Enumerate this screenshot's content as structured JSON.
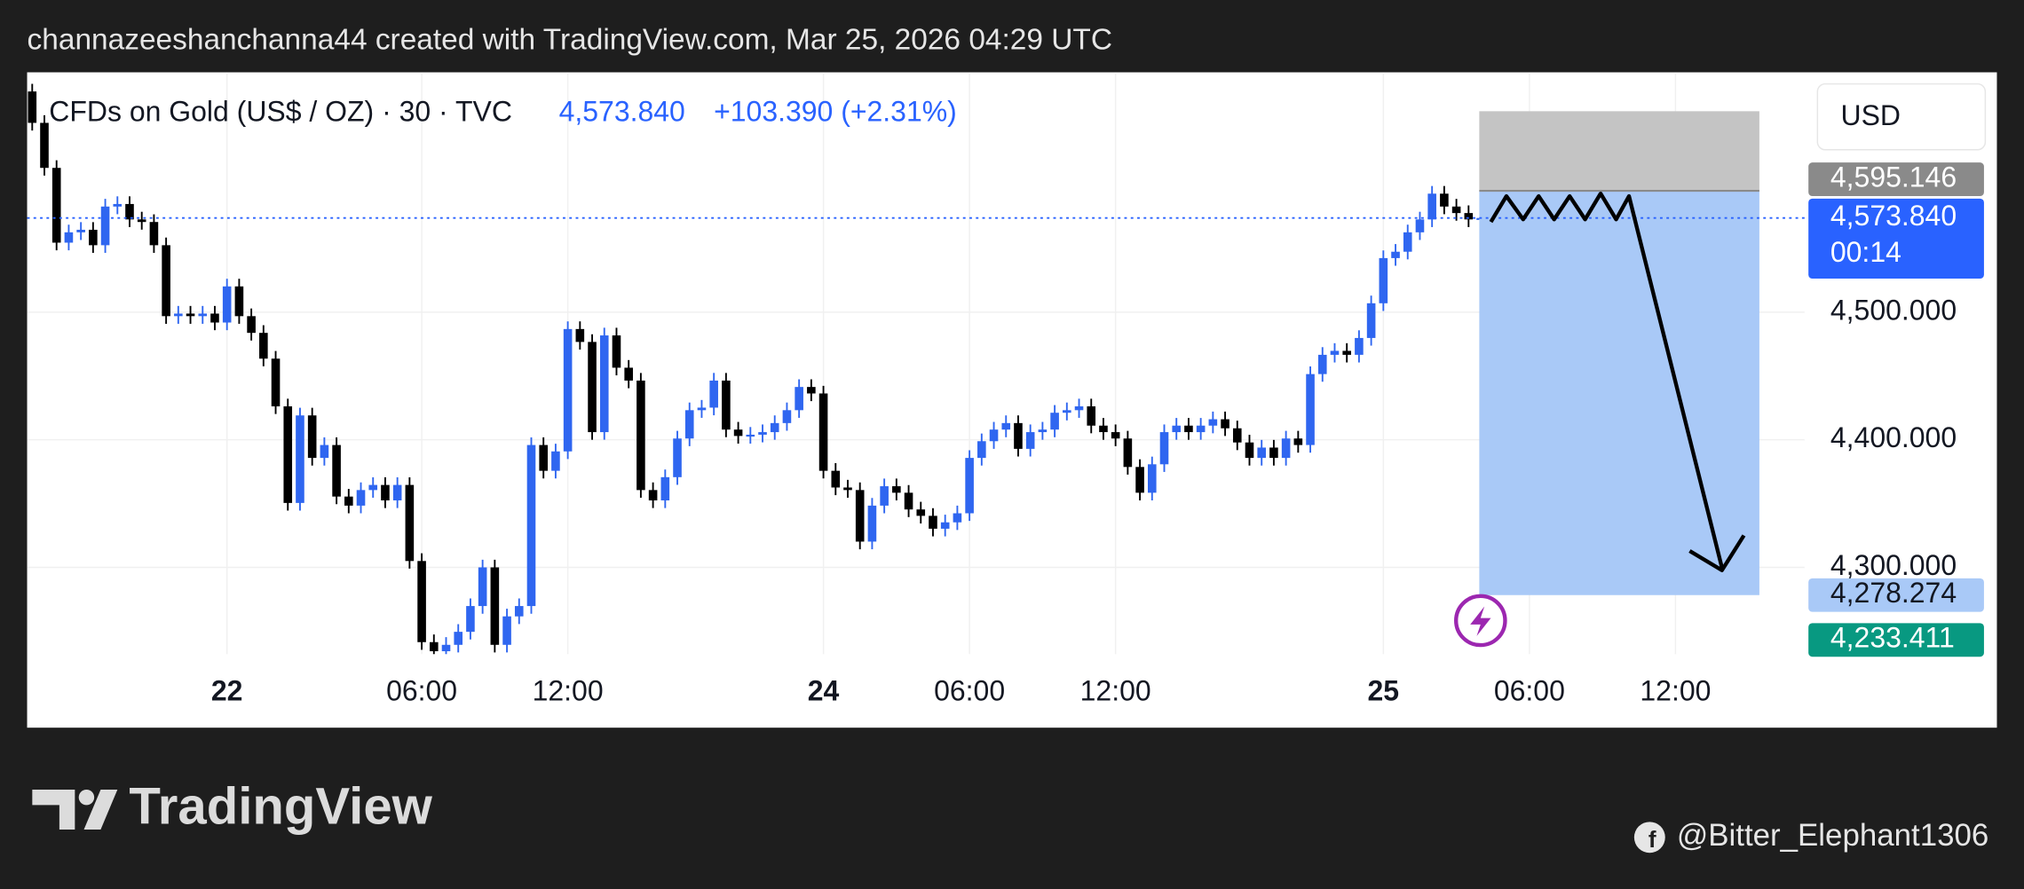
{
  "header": {
    "text": "channazeeshanchanna44 created with TradingView.com, Mar 25, 2026 04:29 UTC"
  },
  "chart_data": {
    "type": "candlestick",
    "title": "CFDs on Gold (US$ / OZ) · 30 · TVC",
    "last_price": {
      "value": 4573.84,
      "label": "4,573.840"
    },
    "change_label": "+103.390 (+2.31%)",
    "currency": "USD",
    "categories": [
      null,
      null,
      null,
      null,
      null,
      null,
      null,
      null,
      null,
      null,
      null,
      null,
      null,
      null,
      null,
      null,
      "22",
      null,
      null,
      null,
      null,
      null,
      null,
      null,
      null,
      null,
      null,
      null,
      null,
      null,
      null,
      null,
      "06:00",
      null,
      null,
      null,
      null,
      null,
      null,
      null,
      null,
      null,
      null,
      null,
      "12:00",
      null,
      null,
      null,
      null,
      null,
      null,
      null,
      null,
      null,
      null,
      null,
      null,
      null,
      null,
      null,
      null,
      null,
      null,
      null,
      null,
      "24",
      null,
      null,
      null,
      null,
      null,
      null,
      null,
      null,
      null,
      null,
      null,
      "06:00",
      null,
      null,
      null,
      null,
      null,
      null,
      null,
      null,
      null,
      null,
      null,
      "12:00",
      null,
      null,
      null,
      null,
      null,
      null,
      null,
      null,
      null,
      null,
      null,
      null,
      null,
      null,
      null,
      null,
      null,
      null,
      null,
      null,
      null,
      "25",
      null,
      null,
      null,
      null,
      null,
      null,
      null,
      null,
      null,
      null,
      null,
      "06:00",
      null,
      null,
      null,
      null,
      null,
      null,
      null,
      null,
      null,
      null,
      null,
      "12:00",
      null,
      null,
      null,
      null,
      null,
      null,
      null,
      null,
      null,
      null
    ],
    "open": [
      4673.0,
      4648.4,
      4613.1,
      4554.5,
      4562.6,
      4564.6,
      4552.5,
      4582.8,
      4584.8,
      4572.7,
      4570.7,
      4552.5,
      4496.9,
      4498.9,
      4496.9,
      4498.9,
      4491.9,
      4520.2,
      4496.9,
      4483.8,
      4463.6,
      4426.2,
      4350.5,
      4419.1,
      4385.8,
      4395.9,
      4355.5,
      4348.4,
      4360.6,
      4364.6,
      4352.5,
      4364.6,
      4305.0,
      4241.4,
      4234.3,
      4239.3,
      4249.5,
      4269.7,
      4300.0,
      4239.3,
      4261.6,
      4269.7,
      4395.9,
      4375.7,
      4390.9,
      4486.8,
      4476.7,
      4406.0,
      4481.8,
      4456.5,
      4446.4,
      4360.6,
      4352.5,
      4370.7,
      4401.0,
      4423.2,
      4425.2,
      4446.4,
      4408.0,
      4403.0,
      4404.0,
      4406.0,
      4413.1,
      4423.2,
      4441.4,
      4436.3,
      4375.7,
      4362.6,
      4360.6,
      4320.2,
      4348.4,
      4363.6,
      4358.5,
      4345.4,
      4340.4,
      4330.3,
      4335.3,
      4342.4,
      4385.8,
      4398.9,
      4408.0,
      4413.1,
      4392.9,
      4406.0,
      4408.0,
      4421.2,
      4423.2,
      4426.2,
      4411.1,
      4406.0,
      4401.0,
      4378.7,
      4358.5,
      4380.8,
      4406.0,
      4411.1,
      4406.0,
      4411.1,
      4416.1,
      4409.0,
      4397.9,
      4385.8,
      4393.9,
      4385.8,
      4401.0,
      4395.9,
      4451.5,
      4466.6,
      4469.7,
      4466.6,
      4479.8,
      4507.0,
      4542.4,
      4547.4,
      4562.6,
      4572.7,
      4592.9,
      4582.8,
      4577.7,
      4572.7,
      null,
      null,
      null,
      null,
      null,
      null,
      null,
      null,
      null,
      null,
      null,
      null,
      null,
      null,
      null,
      null,
      null,
      null,
      null,
      null,
      null,
      null,
      null,
      null,
      null,
      null
    ],
    "high": [
      4679.0,
      4654.4,
      4619.1,
      4568.6,
      4570.6,
      4570.6,
      4588.8,
      4590.8,
      4590.8,
      4578.7,
      4576.7,
      4558.5,
      4504.9,
      4504.9,
      4504.9,
      4504.9,
      4526.2,
      4526.2,
      4502.9,
      4489.8,
      4469.6,
      4432.2,
      4425.1,
      4425.1,
      4401.9,
      4401.9,
      4361.5,
      4366.6,
      4370.6,
      4370.6,
      4370.6,
      4370.6,
      4311.0,
      4247.4,
      4245.3,
      4255.5,
      4275.7,
      4306.0,
      4306.0,
      4267.6,
      4275.7,
      4401.9,
      4401.9,
      4396.9,
      4492.8,
      4492.8,
      4482.7,
      4487.8,
      4487.8,
      4462.5,
      4452.4,
      4366.6,
      4376.7,
      4407.0,
      4429.2,
      4431.2,
      4452.4,
      4452.4,
      4414.0,
      4410.0,
      4412.0,
      4419.1,
      4429.2,
      4447.4,
      4447.4,
      4442.3,
      4381.7,
      4368.6,
      4366.6,
      4354.4,
      4369.6,
      4369.6,
      4364.5,
      4351.4,
      4346.4,
      4341.3,
      4348.4,
      4391.8,
      4404.9,
      4414.0,
      4419.1,
      4419.1,
      4412.0,
      4414.0,
      4427.2,
      4429.2,
      4432.2,
      4432.2,
      4417.1,
      4412.0,
      4407.0,
      4384.7,
      4386.8,
      4412.0,
      4417.1,
      4417.1,
      4417.1,
      4422.1,
      4422.1,
      4415.0,
      4403.9,
      4399.9,
      4399.9,
      4407.0,
      4407.0,
      4457.5,
      4472.6,
      4475.7,
      4475.7,
      4485.8,
      4513.0,
      4548.4,
      4553.4,
      4568.6,
      4578.7,
      4598.9,
      4598.9,
      4588.8,
      4583.7,
      4579.84,
      null,
      null,
      null,
      null,
      null,
      null,
      null,
      null,
      null,
      null,
      null,
      null,
      null,
      null,
      null,
      null,
      null,
      null,
      null,
      null,
      null,
      null,
      null,
      null,
      null,
      null
    ],
    "low": [
      4642.4,
      4607.1,
      4548.5,
      4548.5,
      4556.6,
      4546.5,
      4546.5,
      4576.8,
      4566.7,
      4564.7,
      4546.5,
      4490.9,
      4490.9,
      4490.9,
      4490.9,
      4485.9,
      4485.9,
      4490.9,
      4477.8,
      4457.6,
      4420.2,
      4344.5,
      4344.5,
      4379.8,
      4379.8,
      4349.5,
      4342.4,
      4342.4,
      4354.6,
      4346.5,
      4346.5,
      4299.0,
      4235.4,
      4228.3,
      4228.3,
      4233.3,
      4243.5,
      4263.7,
      4233.3,
      4233.3,
      4255.6,
      4263.7,
      4369.7,
      4369.7,
      4384.9,
      4470.7,
      4400.0,
      4400.0,
      4450.5,
      4440.4,
      4354.6,
      4346.5,
      4346.5,
      4364.7,
      4395.0,
      4417.2,
      4419.2,
      4402.0,
      4397.0,
      4397.0,
      4398.0,
      4400.0,
      4407.1,
      4417.2,
      4430.3,
      4369.7,
      4356.6,
      4354.6,
      4314.2,
      4314.2,
      4342.4,
      4352.5,
      4339.4,
      4334.4,
      4324.3,
      4324.3,
      4329.3,
      4336.4,
      4379.8,
      4392.9,
      4402.0,
      4386.9,
      4386.9,
      4400.0,
      4402.0,
      4415.2,
      4417.2,
      4405.1,
      4400.0,
      4395.0,
      4372.7,
      4352.5,
      4352.5,
      4374.8,
      4400.0,
      4400.0,
      4400.0,
      4405.1,
      4403.0,
      4391.9,
      4379.8,
      4379.8,
      4379.8,
      4379.8,
      4389.9,
      4389.9,
      4445.5,
      4460.6,
      4460.6,
      4460.6,
      4473.8,
      4501.0,
      4536.4,
      4541.4,
      4556.6,
      4566.7,
      4576.8,
      4571.7,
      4566.7,
      4566.7,
      null,
      null,
      null,
      null,
      null,
      null,
      null,
      null,
      null,
      null,
      null,
      null,
      null,
      null,
      null,
      null,
      null,
      null,
      null,
      null,
      null,
      null,
      null,
      null,
      null,
      null
    ],
    "close": [
      4648.4,
      4613.1,
      4554.5,
      4562.6,
      4564.6,
      4552.5,
      4582.8,
      4584.8,
      4572.7,
      4570.7,
      4552.5,
      4496.9,
      4498.9,
      4496.9,
      4498.9,
      4491.9,
      4520.2,
      4496.9,
      4483.8,
      4463.6,
      4426.2,
      4350.5,
      4419.1,
      4385.8,
      4395.9,
      4355.5,
      4348.4,
      4360.6,
      4364.6,
      4352.5,
      4364.6,
      4305.0,
      4241.4,
      4234.3,
      4239.3,
      4249.5,
      4269.7,
      4300.0,
      4239.3,
      4261.6,
      4269.7,
      4395.9,
      4375.7,
      4390.9,
      4486.8,
      4476.7,
      4406.0,
      4481.8,
      4456.5,
      4446.4,
      4360.6,
      4352.5,
      4370.7,
      4401.0,
      4423.2,
      4425.2,
      4446.4,
      4408.0,
      4403.0,
      4404.0,
      4406.0,
      4413.1,
      4423.2,
      4441.4,
      4436.3,
      4375.7,
      4362.6,
      4360.6,
      4320.2,
      4348.4,
      4363.6,
      4358.5,
      4345.4,
      4340.4,
      4330.3,
      4335.3,
      4342.4,
      4385.8,
      4398.9,
      4408.0,
      4413.1,
      4392.9,
      4406.0,
      4408.0,
      4421.2,
      4423.2,
      4426.2,
      4411.1,
      4406.0,
      4401.0,
      4378.7,
      4358.5,
      4380.8,
      4406.0,
      4411.1,
      4406.0,
      4411.1,
      4416.1,
      4409.0,
      4397.9,
      4385.8,
      4393.9,
      4385.8,
      4401.0,
      4395.9,
      4451.5,
      4466.6,
      4469.7,
      4466.6,
      4479.8,
      4507.0,
      4542.4,
      4547.4,
      4562.6,
      4572.7,
      4592.9,
      4582.8,
      4577.7,
      4572.7,
      4573.84,
      null,
      null,
      null,
      null,
      null,
      null,
      null,
      null,
      null,
      null,
      null,
      null,
      null,
      null,
      null,
      null,
      null,
      null,
      null,
      null,
      null,
      null,
      null,
      null,
      null,
      null
    ],
    "up_color": "#2f66f0",
    "down_color": "#000000",
    "ylim": [
      4232,
      4687
    ],
    "yticks": [
      {
        "value": 4300,
        "label": "4,300.000"
      },
      {
        "value": 4400,
        "label": "4,400.000"
      },
      {
        "value": 4500,
        "label": "4,500.000"
      }
    ],
    "grid": true,
    "price_labels": [
      {
        "value": 4595.146,
        "label": "4,595.146",
        "color": "#8a8a8a",
        "text_color": "#ffffff"
      },
      {
        "value": 4573.84,
        "label": "4,573.840",
        "countdown": "00:14",
        "color": "#2962ff",
        "text_color": "#ffffff"
      },
      {
        "value": 4278.274,
        "label": "4,278.274",
        "color": "#a9c9f7",
        "text_color": "#131722"
      },
      {
        "value": 4233.411,
        "label": "4,233.411",
        "color": "#089981",
        "text_color": "#ffffff"
      }
    ],
    "position": {
      "upper": 4657.5,
      "entry": 4595.146,
      "target": 4278.274
    }
  },
  "footer": {
    "brand": "TradingView",
    "credit": "@Bitter_Elephant1306"
  }
}
